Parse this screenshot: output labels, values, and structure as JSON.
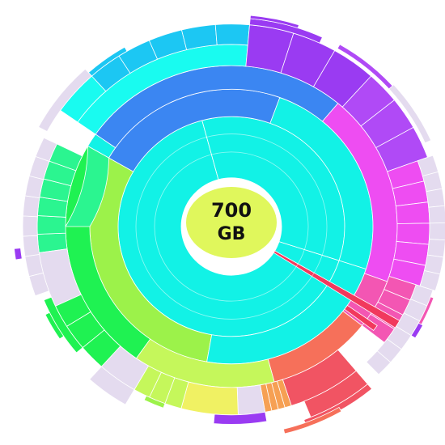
{
  "center": {
    "value": "700",
    "unit": "GB",
    "color": "#e0f75c"
  },
  "palette": {
    "cyan": "#12f2e6",
    "cyan_light": "#19fbf0",
    "blue": "#3b86f2",
    "blue_mid": "#2f9cf5",
    "sky": "#1cc7f3",
    "violet": "#9a3bf2",
    "purple": "#b04af6",
    "magenta": "#ee4df2",
    "pink": "#f356b3",
    "hot_pink": "#f1395d",
    "red": "#f15463",
    "coral": "#f6705a",
    "orange": "#f6a053",
    "yellow": "#f0f163",
    "lime": "#9cf24a",
    "lime_light": "#c5f75b",
    "green": "#1ff252",
    "spring": "#2bf590",
    "pale": "#e4dbef"
  }
}
